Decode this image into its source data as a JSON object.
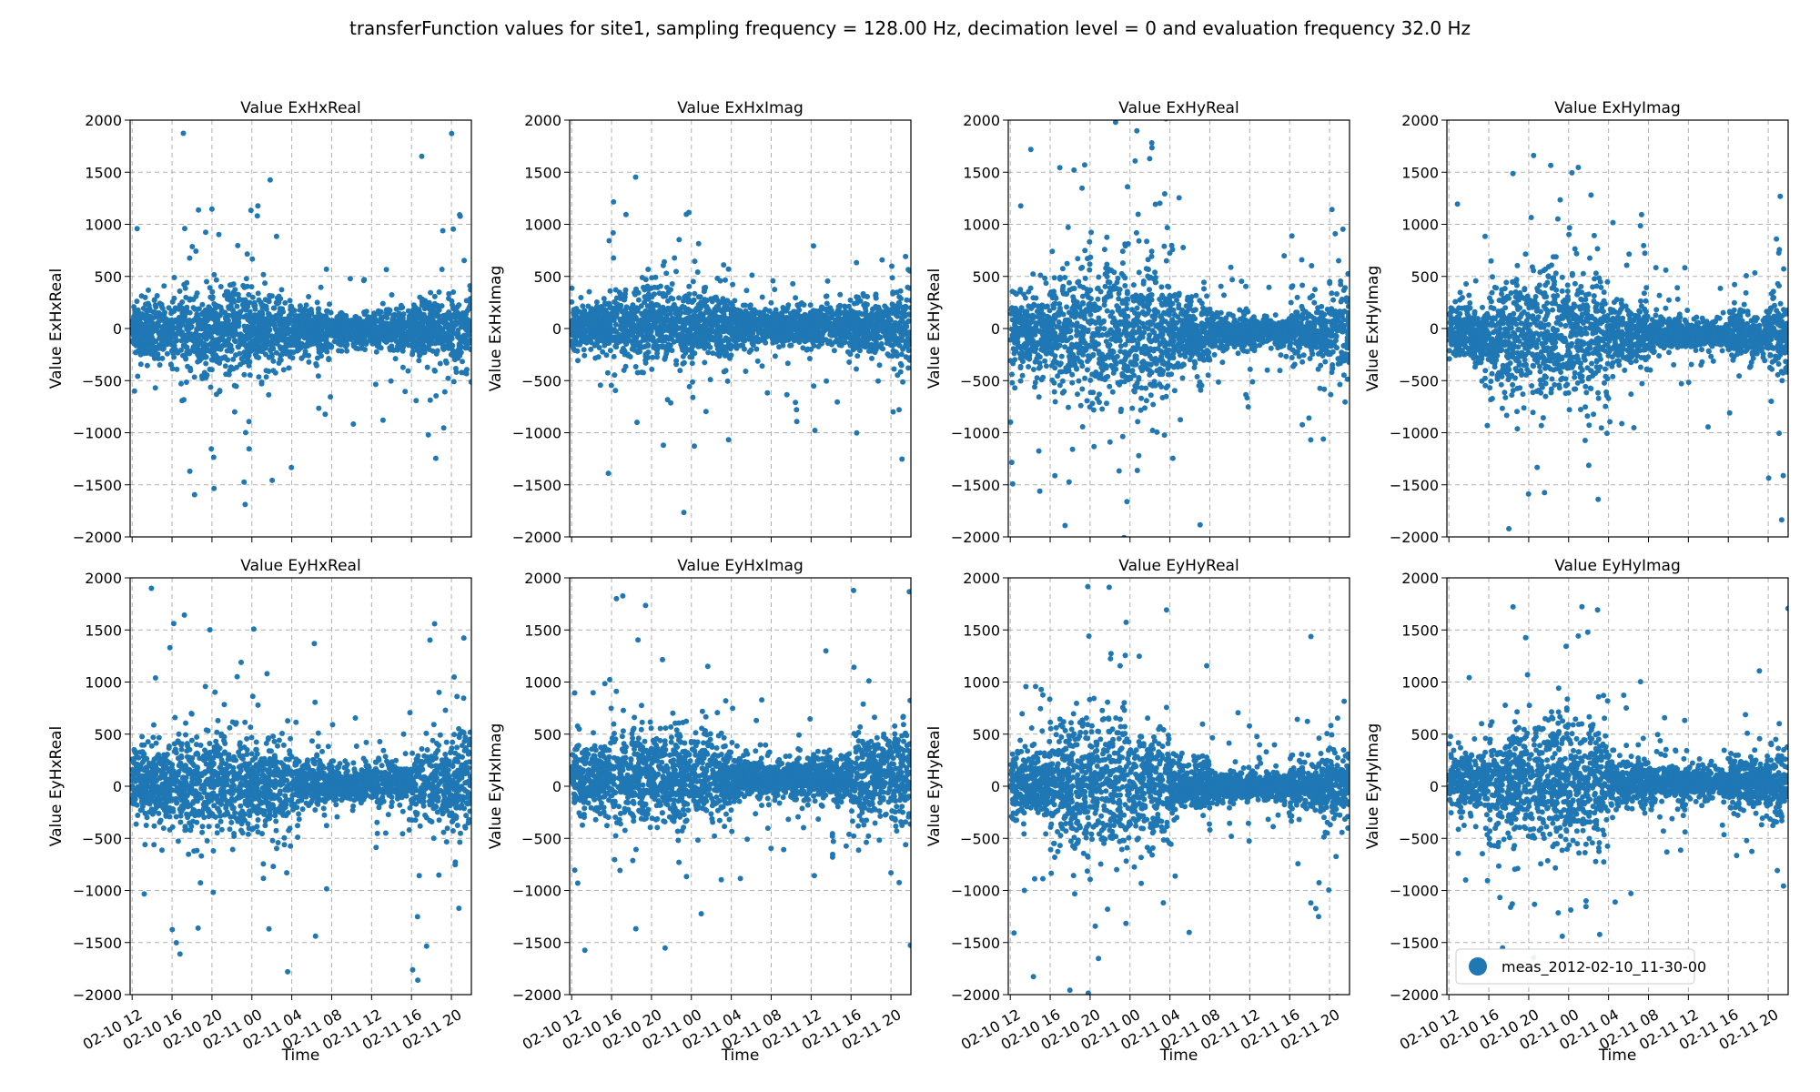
{
  "figure": {
    "suptitle": "transferFunction values for site1, sampling frequency = 128.00 Hz, decimation level = 0 and evaluation frequency 32.0 Hz",
    "marker_color": "#1f77b4",
    "legend": {
      "label": "meas_2012-02-10_11-30-00",
      "location": "lower-left of bottom-right panel"
    }
  },
  "chart_data": {
    "type": "scatter",
    "grid": true,
    "xlabel": "Time",
    "x_ticks": [
      "02-10 12",
      "02-10 16",
      "02-10 20",
      "02-11 00",
      "02-11 04",
      "02-11 08",
      "02-11 12",
      "02-11 16",
      "02-11 20"
    ],
    "x_range_hours_from_02-10_12": [
      -0.2,
      34.0
    ],
    "ylim": [
      -2000,
      2000
    ],
    "y_ticks": [
      "2000",
      "1500",
      "1000",
      "500",
      "0",
      "−500",
      "−1000",
      "−1500",
      "−2000"
    ],
    "series_name": "meas_2012-02-10_11-30-00",
    "panels": [
      {
        "title": "Value ExHxReal",
        "ylabel": "Value ExHxReal",
        "center": -20,
        "spread": [
          120,
          200,
          220,
          170,
          110,
          80,
          90,
          140,
          190
        ],
        "outlier_rate": 0.06
      },
      {
        "title": "Value ExHxImag",
        "ylabel": "Value ExHxImag",
        "center": 20,
        "spread": [
          100,
          180,
          190,
          150,
          100,
          80,
          90,
          140,
          190
        ],
        "outlier_rate": 0.06
      },
      {
        "title": "Value ExHyReal",
        "ylabel": "Value ExHyReal",
        "center": -40,
        "spread": [
          170,
          300,
          360,
          340,
          180,
          90,
          60,
          130,
          200
        ],
        "outlier_rate": 0.07
      },
      {
        "title": "Value ExHyImag",
        "ylabel": "Value ExHyImag",
        "center": -60,
        "spread": [
          140,
          260,
          320,
          300,
          150,
          80,
          60,
          110,
          180
        ],
        "outlier_rate": 0.07
      },
      {
        "title": "Value EyHxReal",
        "ylabel": "Value EyHxReal",
        "center": 30,
        "spread": [
          180,
          240,
          250,
          200,
          110,
          80,
          100,
          200,
          250
        ],
        "outlier_rate": 0.06
      },
      {
        "title": "Value EyHxImag",
        "ylabel": "Value EyHxImag",
        "center": 80,
        "spread": [
          170,
          230,
          230,
          190,
          110,
          80,
          110,
          200,
          240
        ],
        "outlier_rate": 0.06
      },
      {
        "title": "Value EyHyReal",
        "ylabel": "Value EyHyReal",
        "center": 0,
        "spread": [
          160,
          300,
          330,
          280,
          120,
          70,
          60,
          130,
          170
        ],
        "outlier_rate": 0.07
      },
      {
        "title": "Value EyHyImag",
        "ylabel": "Value EyHyImag",
        "center": 30,
        "spread": [
          160,
          280,
          300,
          260,
          110,
          70,
          60,
          120,
          170
        ],
        "outlier_rate": 0.07
      }
    ]
  }
}
